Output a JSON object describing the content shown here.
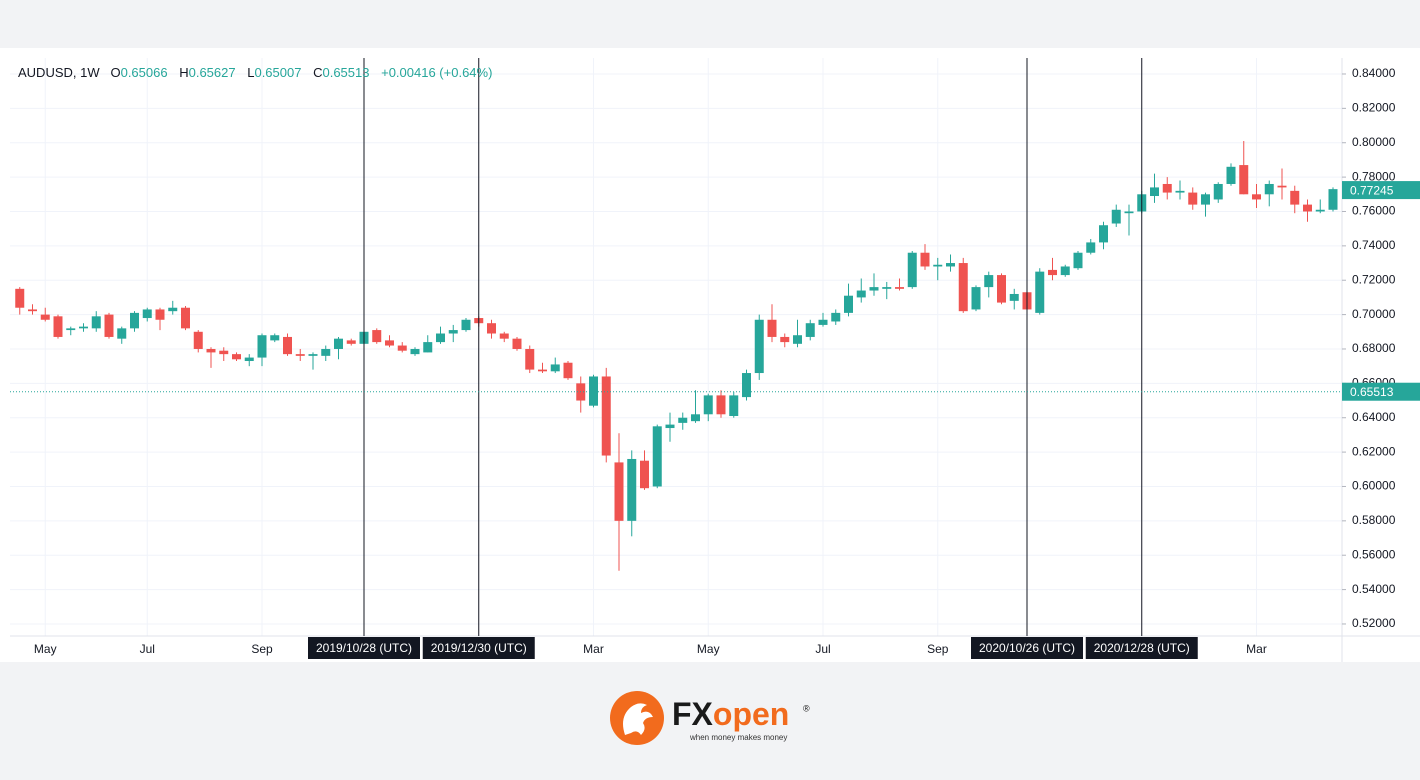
{
  "header": {
    "symbol": "AUDUSD, 1W",
    "o_label": "O",
    "open": 0.65066,
    "h_label": "H",
    "high": 0.65627,
    "l_label": "L",
    "low": 0.65007,
    "c_label": "C",
    "close": 0.65513,
    "change": "+0.00416 (+0.64%)"
  },
  "chart_data": {
    "type": "candlestick",
    "categories": [
      null,
      null,
      "May",
      null,
      null,
      null,
      null,
      null,
      null,
      null,
      "Jul",
      null,
      null,
      null,
      null,
      null,
      null,
      null,
      null,
      "Sep",
      null,
      null,
      null,
      null,
      null,
      null,
      null,
      null,
      null,
      null,
      null,
      null,
      null,
      null,
      null,
      null,
      null,
      null,
      null,
      null,
      null,
      null,
      null,
      null,
      null,
      "Mar",
      null,
      null,
      null,
      null,
      null,
      null,
      null,
      null,
      "May",
      null,
      null,
      null,
      null,
      null,
      null,
      null,
      null,
      "Jul",
      null,
      null,
      null,
      null,
      null,
      null,
      null,
      null,
      "Sep",
      null,
      null,
      null,
      null,
      null,
      null,
      null,
      null,
      null,
      null,
      null,
      null,
      null,
      null,
      null,
      null,
      null,
      null,
      null,
      null,
      null,
      null,
      null,
      null,
      "Mar",
      null,
      null,
      null,
      null,
      null,
      null
    ],
    "marker_labels": [
      null,
      null,
      null,
      null,
      null,
      null,
      null,
      null,
      null,
      null,
      null,
      null,
      null,
      null,
      null,
      null,
      null,
      null,
      null,
      null,
      null,
      null,
      null,
      null,
      null,
      null,
      null,
      "2019/10/28 (UTC)",
      null,
      null,
      null,
      null,
      null,
      null,
      null,
      null,
      "2019/12/30 (UTC)",
      null,
      null,
      null,
      null,
      null,
      null,
      null,
      null,
      null,
      null,
      null,
      null,
      null,
      null,
      null,
      null,
      null,
      null,
      null,
      null,
      null,
      null,
      null,
      null,
      null,
      null,
      null,
      null,
      null,
      null,
      null,
      null,
      null,
      null,
      null,
      null,
      null,
      null,
      null,
      null,
      null,
      null,
      "2020/10/26 (UTC)",
      null,
      null,
      null,
      null,
      null,
      null,
      null,
      null,
      "2020/12/28 (UTC)",
      null,
      null,
      null,
      null,
      null,
      null,
      null,
      null,
      null,
      null,
      null,
      null,
      null,
      null,
      null
    ],
    "open": [
      0.715,
      0.703,
      0.7,
      0.699,
      0.691,
      0.692,
      0.692,
      0.7,
      0.686,
      0.692,
      0.698,
      0.703,
      0.702,
      0.704,
      0.69,
      0.68,
      0.679,
      0.677,
      0.673,
      0.675,
      0.685,
      0.687,
      0.677,
      0.676,
      0.676,
      0.68,
      0.685,
      0.683,
      0.691,
      0.685,
      0.682,
      0.677,
      0.678,
      0.684,
      0.689,
      0.691,
      0.698,
      0.695,
      0.689,
      0.686,
      0.68,
      0.668,
      0.667,
      0.672,
      0.66,
      0.647,
      0.664,
      0.614,
      0.58,
      0.615,
      0.6,
      0.634,
      0.637,
      0.638,
      0.642,
      0.653,
      0.641,
      0.652,
      0.666,
      0.697,
      0.687,
      0.683,
      0.687,
      0.694,
      0.696,
      0.701,
      0.71,
      0.714,
      0.715,
      0.716,
      0.716,
      0.736,
      0.728,
      0.728,
      0.73,
      0.703,
      0.716,
      0.723,
      0.708,
      0.713,
      0.701,
      0.726,
      0.723,
      0.727,
      0.736,
      0.742,
      0.753,
      0.759,
      0.76,
      0.769,
      0.776,
      0.771,
      0.771,
      0.764,
      0.767,
      0.776,
      0.787,
      0.77,
      0.77,
      0.775,
      0.772,
      0.764,
      0.76,
      0.761
    ],
    "high": [
      0.716,
      0.706,
      0.704,
      0.7,
      0.693,
      0.695,
      0.702,
      0.701,
      0.693,
      0.702,
      0.704,
      0.704,
      0.708,
      0.705,
      0.691,
      0.681,
      0.681,
      0.678,
      0.677,
      0.689,
      0.689,
      0.689,
      0.68,
      0.678,
      0.682,
      0.687,
      0.686,
      0.692,
      0.692,
      0.688,
      0.684,
      0.681,
      0.688,
      0.693,
      0.694,
      0.698,
      0.699,
      0.697,
      0.69,
      0.687,
      0.682,
      0.672,
      0.675,
      0.673,
      0.664,
      0.665,
      0.669,
      0.631,
      0.621,
      0.621,
      0.636,
      0.643,
      0.643,
      0.656,
      0.654,
      0.656,
      0.655,
      0.668,
      0.7,
      0.706,
      0.689,
      0.697,
      0.697,
      0.701,
      0.703,
      0.718,
      0.721,
      0.724,
      0.719,
      0.721,
      0.737,
      0.741,
      0.733,
      0.735,
      0.733,
      0.717,
      0.725,
      0.724,
      0.715,
      0.715,
      0.727,
      0.733,
      0.729,
      0.737,
      0.744,
      0.754,
      0.764,
      0.764,
      0.772,
      0.782,
      0.78,
      0.778,
      0.774,
      0.771,
      0.777,
      0.788,
      0.801,
      0.776,
      0.778,
      0.785,
      0.775,
      0.767,
      0.767,
      0.774
    ],
    "low": [
      0.7,
      0.7,
      0.696,
      0.686,
      0.688,
      0.69,
      0.69,
      0.686,
      0.683,
      0.69,
      0.696,
      0.691,
      0.7,
      0.691,
      0.678,
      0.669,
      0.673,
      0.673,
      0.67,
      0.67,
      0.684,
      0.676,
      0.673,
      0.668,
      0.673,
      0.674,
      0.682,
      0.682,
      0.683,
      0.681,
      0.678,
      0.676,
      0.678,
      0.683,
      0.684,
      0.69,
      0.693,
      0.686,
      0.684,
      0.679,
      0.666,
      0.666,
      0.666,
      0.662,
      0.643,
      0.646,
      0.614,
      0.551,
      0.571,
      0.598,
      0.599,
      0.626,
      0.633,
      0.637,
      0.638,
      0.64,
      0.64,
      0.65,
      0.662,
      0.684,
      0.681,
      0.681,
      0.685,
      0.693,
      0.694,
      0.699,
      0.707,
      0.711,
      0.709,
      0.714,
      0.715,
      0.726,
      0.72,
      0.725,
      0.701,
      0.702,
      0.71,
      0.706,
      0.703,
      0.702,
      0.7,
      0.72,
      0.722,
      0.726,
      0.735,
      0.738,
      0.751,
      0.746,
      0.759,
      0.765,
      0.767,
      0.767,
      0.761,
      0.757,
      0.765,
      0.775,
      0.77,
      0.762,
      0.763,
      0.767,
      0.759,
      0.754,
      0.759,
      0.76
    ],
    "close": [
      0.704,
      0.702,
      0.697,
      0.687,
      0.692,
      0.693,
      0.699,
      0.687,
      0.692,
      0.701,
      0.703,
      0.697,
      0.704,
      0.692,
      0.68,
      0.678,
      0.677,
      0.674,
      0.675,
      0.688,
      0.688,
      0.677,
      0.676,
      0.677,
      0.68,
      0.686,
      0.683,
      0.69,
      0.684,
      0.682,
      0.679,
      0.68,
      0.684,
      0.689,
      0.691,
      0.697,
      0.695,
      0.689,
      0.686,
      0.68,
      0.668,
      0.667,
      0.671,
      0.663,
      0.65,
      0.664,
      0.618,
      0.58,
      0.616,
      0.599,
      0.635,
      0.636,
      0.64,
      0.642,
      0.653,
      0.642,
      0.653,
      0.666,
      0.697,
      0.687,
      0.684,
      0.688,
      0.695,
      0.697,
      0.701,
      0.711,
      0.714,
      0.716,
      0.716,
      0.715,
      0.736,
      0.728,
      0.729,
      0.73,
      0.702,
      0.716,
      0.723,
      0.707,
      0.712,
      0.703,
      0.725,
      0.723,
      0.728,
      0.736,
      0.742,
      0.752,
      0.761,
      0.76,
      0.77,
      0.774,
      0.771,
      0.772,
      0.764,
      0.77,
      0.776,
      0.786,
      0.77,
      0.767,
      0.776,
      0.774,
      0.764,
      0.76,
      0.761,
      0.773
    ],
    "up_color": "#26a69a",
    "down_color": "#ef5350",
    "ylim": [
      0.513,
      0.8493
    ],
    "yticks": [
      {
        "value": 0.52,
        "label": "0.52000"
      },
      {
        "value": 0.54,
        "label": "0.54000"
      },
      {
        "value": 0.56,
        "label": "0.56000"
      },
      {
        "value": 0.58,
        "label": "0.58000"
      },
      {
        "value": 0.6,
        "label": "0.60000"
      },
      {
        "value": 0.62,
        "label": "0.62000"
      },
      {
        "value": 0.64,
        "label": "0.64000"
      },
      {
        "value": 0.66,
        "label": "0.66000"
      },
      {
        "value": 0.68,
        "label": "0.68000"
      },
      {
        "value": 0.7,
        "label": "0.70000"
      },
      {
        "value": 0.72,
        "label": "0.72000"
      },
      {
        "value": 0.74,
        "label": "0.74000"
      },
      {
        "value": 0.76,
        "label": "0.76000"
      },
      {
        "value": 0.78,
        "label": "0.78000"
      },
      {
        "value": 0.8,
        "label": "0.80000"
      },
      {
        "value": 0.82,
        "label": "0.82000"
      },
      {
        "value": 0.84,
        "label": "0.84000"
      }
    ],
    "grid": true,
    "last_price": 0.77245,
    "crosshair_price": 0.65513
  },
  "brand": {
    "fx": "FX",
    "open": "open",
    "registered": "®",
    "tagline": "when money makes money"
  }
}
